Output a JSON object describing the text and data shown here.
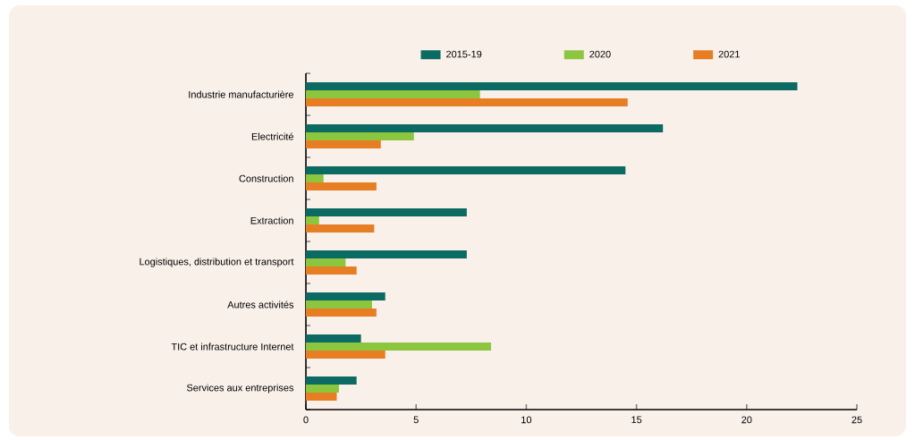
{
  "chart_data": {
    "type": "bar",
    "orientation": "horizontal",
    "categories": [
      "Industrie manufacturière",
      "Electricité",
      "Construction",
      "Extraction",
      "Logistiques, distribution et transport",
      "Autres activités",
      "TIC et infrastructure Internet",
      "Services aux entreprises"
    ],
    "series": [
      {
        "name": "2015-19",
        "color": "#0b6b63",
        "values": [
          22.3,
          16.2,
          14.5,
          7.3,
          7.3,
          3.6,
          2.5,
          2.3
        ]
      },
      {
        "name": "2020",
        "color": "#8cc63f",
        "values": [
          7.9,
          4.9,
          0.8,
          0.6,
          1.8,
          3.0,
          8.4,
          1.5
        ]
      },
      {
        "name": "2021",
        "color": "#e87e24",
        "values": [
          14.6,
          3.4,
          3.2,
          3.1,
          2.3,
          3.2,
          3.6,
          1.4
        ]
      }
    ],
    "xlim": [
      0,
      25
    ],
    "xticks": [
      0,
      5,
      10,
      15,
      20,
      25
    ],
    "legend": "top",
    "grid": false
  }
}
